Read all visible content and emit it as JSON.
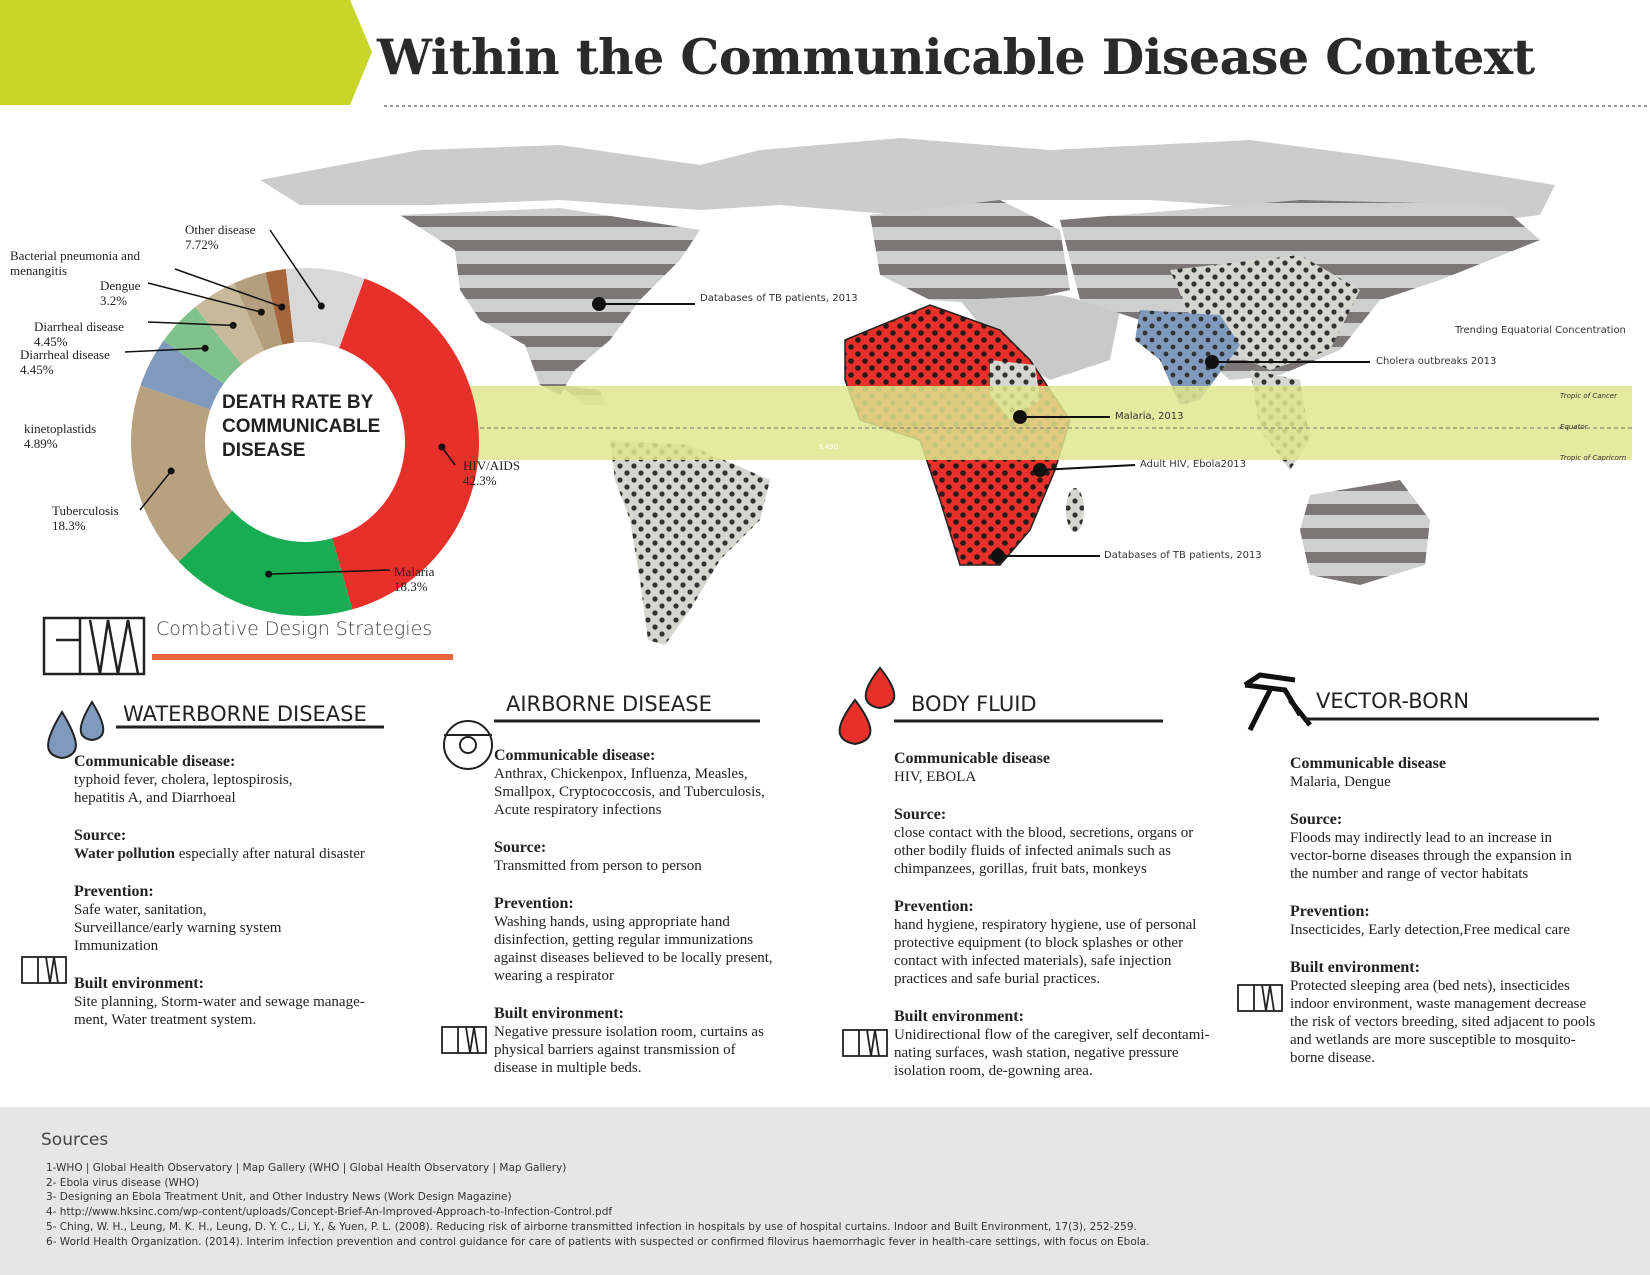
{
  "header": {
    "title": "Within the Communicable Disease Context"
  },
  "chart_data": {
    "type": "pie",
    "title": "DEATH RATE BY COMMUNICABLE DISEASE",
    "categories": [
      "HIV/AIDS",
      "Malaria",
      "Tuberculosis",
      "kinetoplastids",
      "Diarrheal disease",
      "Diarrheal disease",
      "Dengue",
      "Bacterial pneumonia and menangitis",
      "Other disease"
    ],
    "values": [
      42.3,
      18.3,
      18.3,
      4.89,
      4.45,
      4.45,
      3.2,
      2,
      7.72
    ],
    "value_labels": [
      "42.3%",
      "18.3%",
      "18.3%",
      "4.89%",
      "4.45%",
      "4.45%",
      "3.2%",
      null,
      "7.72%"
    ],
    "colors": [
      "#e8302a",
      "#18ad52",
      "#b8a17f",
      "#7f9abd",
      "#80c28b",
      "#c9b99b",
      "#b39e7d",
      "#a4663a",
      "#d8d8d8"
    ]
  },
  "map": {
    "annotations": [
      "Databases of TB patients, 2013",
      "Trending Equatorial Concentration",
      "Cholera outbreaks 2013",
      "Malaria, 2013",
      "Adult HIV, Ebola2013",
      "Databases of TB patients, 2013"
    ],
    "lines": [
      "Tropic of Cancer",
      "Equator",
      "Tropic of Capricorn"
    ],
    "band_label": "3,490"
  },
  "strategies": {
    "title": "Combative Design Strategies",
    "columns": [
      {
        "title": "WATERBORNE DISEASE",
        "blocks": [
          {
            "heading": "Communicable disease:",
            "text": "typhoid fever, cholera, leptospirosis,\nhepatitis A, and Diarrhoeal"
          },
          {
            "heading": "Source:",
            "bold": "Water pollution",
            "text": " especially after natural disaster"
          },
          {
            "heading": "Prevention:",
            "text": "Safe water, sanitation,\nSurveillance/early warning system\nImmunization"
          },
          {
            "heading": "Built environment:",
            "text": "Site planning, Storm-water and sewage manage-\nment, Water treatment system."
          }
        ]
      },
      {
        "title": "AIRBORNE DISEASE",
        "blocks": [
          {
            "heading": "Communicable disease:",
            "text": "Anthrax, Chickenpox, Influenza, Measles,\nSmallpox, Cryptococcosis, and Tuberculosis,\nAcute respiratory infections"
          },
          {
            "heading": "Source:",
            "text": "Transmitted from person to person"
          },
          {
            "heading": "Prevention:",
            "text": "Washing hands, using appropriate hand\ndisinfection, getting regular immunizations\nagainst diseases believed to be locally present,\nwearing a respirator"
          },
          {
            "heading": "Built environment:",
            "text": "Negative pressure isolation room, curtains as\nphysical barriers against transmission of\ndisease in multiple beds."
          }
        ]
      },
      {
        "title": "BODY FLUID",
        "blocks": [
          {
            "heading": "Communicable disease",
            "text": "HIV, EBOLA"
          },
          {
            "heading": "Source:",
            "text": "close contact with the blood, secretions, organs or\nother bodily fluids of infected animals such as\nchimpanzees, gorillas, fruit bats, monkeys"
          },
          {
            "heading": "Prevention:",
            "text": "hand hygiene, respiratory hygiene, use of personal\nprotective equipment (to block splashes or other\ncontact with infected materials), safe injection\npractices and safe burial practices."
          },
          {
            "heading": "Built environment:",
            "text": "Unidirectional flow of the caregiver, self decontami-\nnating surfaces, wash station, negative pressure\nisolation room, de-gowning area."
          }
        ]
      },
      {
        "title": "VECTOR-BORN",
        "blocks": [
          {
            "heading": "Communicable disease",
            "text": "Malaria, Dengue"
          },
          {
            "heading": "Source:",
            "text": "Floods may indirectly lead to an increase in\nvector-borne diseases through the expansion in\nthe number and range of vector habitats"
          },
          {
            "heading": "Prevention:",
            "text": "Insecticides, Early detection,Free medical care"
          },
          {
            "heading": "Built environment:",
            "text": "Protected sleeping area (bed nets), insecticides\nindoor environment, waste management decrease\nthe risk of vectors breeding, sited adjacent to pools\nand wetlands are more susceptible to mosquito-\nborne disease."
          }
        ]
      }
    ]
  },
  "sources": {
    "title": "Sources",
    "items": [
      "1-WHO | Global Health Observatory | Map Gallery (WHO | Global Health Observatory | Map Gallery)",
      "2- Ebola virus disease (WHO)",
      "3- Designing an Ebola Treatment Unit, and Other Industry News (Work Design Magazine)",
      "4- http://www.hksinc.com/wp-content/uploads/Concept-Brief-An-Improved-Approach-to-Infection-Control.pdf",
      "5- Ching, W. H., Leung, M. K. H., Leung, D. Y. C., Li, Y., & Yuen, P. L. (2008). Reducing risk of airborne transmitted infection in hospitals by use of hospital curtains. Indoor and Built Environment, 17(3), 252-259.",
      "6- World Health Organization. (2014). Interim infection prevention and control guidance for care of patients with suspected or confirmed filovirus haemorrhagic fever in health-care settings, with focus on Ebola."
    ]
  }
}
